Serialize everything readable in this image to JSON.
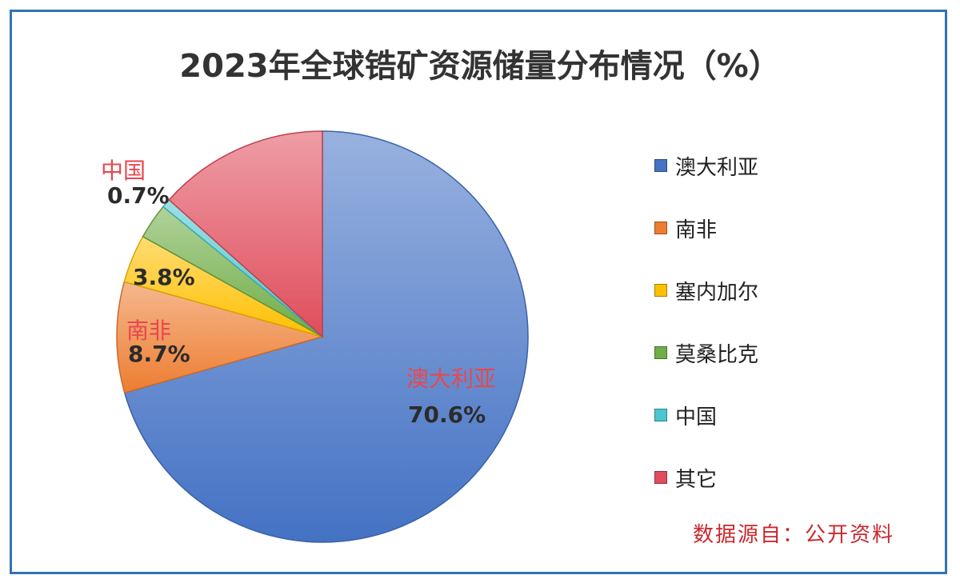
{
  "chart_data": {
    "type": "pie",
    "title": "2023年全球锆矿资源储量分布情况（%）",
    "categories": [
      "澳大利亚",
      "南非",
      "塞内加尔",
      "莫桑比克",
      "中国",
      "其它"
    ],
    "values": [
      70.6,
      8.7,
      3.8,
      2.8,
      0.7,
      13.4
    ],
    "colors": [
      "#4472c4",
      "#ed7d31",
      "#ffc000",
      "#70ad47",
      "#4bc6d0",
      "#e04d5c"
    ],
    "legend_position": "right",
    "data_labels": {
      "australia": {
        "name": "澳大利亚",
        "value": "70.6%"
      },
      "south_africa": {
        "name": "南非",
        "value": "8.7%"
      },
      "senegal": {
        "value": "3.8%"
      },
      "china": {
        "name": "中国",
        "value": "0.7%"
      }
    }
  },
  "source_note": "数据源自：公开资料"
}
